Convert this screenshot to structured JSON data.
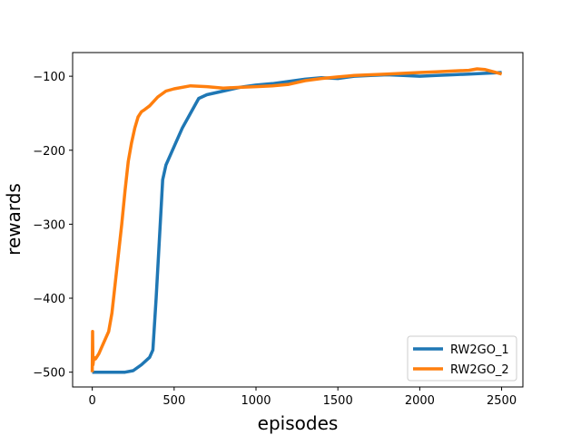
{
  "chart_data": {
    "type": "line",
    "title": "",
    "xlabel": "episodes",
    "ylabel": "rewards",
    "xlim": [
      -120,
      2630
    ],
    "ylim": [
      -520,
      -68
    ],
    "xticks": [
      0,
      500,
      1000,
      1500,
      2000,
      2500
    ],
    "yticks": [
      -500,
      -400,
      -300,
      -200,
      -100
    ],
    "xtick_labels": [
      "0",
      "500",
      "1000",
      "1500",
      "2000",
      "2500"
    ],
    "ytick_labels": [
      "−500",
      "−400",
      "−300",
      "−200",
      "−100"
    ],
    "grid": false,
    "legend": "lower-right",
    "series": [
      {
        "name": "RW2GO_1",
        "color": "#1f77b4",
        "x": [
          0,
          100,
          200,
          250,
          300,
          350,
          370,
          390,
          410,
          430,
          450,
          470,
          500,
          550,
          600,
          650,
          700,
          800,
          900,
          1000,
          1100,
          1200,
          1300,
          1400,
          1500,
          1600,
          1700,
          1800,
          1900,
          2000,
          2100,
          2200,
          2300,
          2400,
          2500
        ],
        "y": [
          -500,
          -500,
          -500,
          -498,
          -490,
          -480,
          -470,
          -400,
          -320,
          -240,
          -220,
          -210,
          -195,
          -170,
          -150,
          -130,
          -125,
          -120,
          -115,
          -112,
          -110,
          -107,
          -104,
          -102,
          -103,
          -100,
          -99,
          -98,
          -99,
          -100,
          -99,
          -98,
          -97,
          -96,
          -95
        ]
      },
      {
        "name": "RW2GO_2",
        "color": "#ff7f0e",
        "x": [
          0,
          2,
          4,
          10,
          20,
          40,
          60,
          80,
          100,
          120,
          140,
          160,
          180,
          200,
          220,
          240,
          260,
          280,
          300,
          320,
          350,
          400,
          450,
          500,
          600,
          700,
          800,
          900,
          1000,
          1100,
          1200,
          1300,
          1400,
          1500,
          1600,
          1700,
          1800,
          1900,
          2000,
          2100,
          2200,
          2300,
          2350,
          2400,
          2450,
          2500
        ],
        "y": [
          -500,
          -445,
          -490,
          -480,
          -482,
          -475,
          -465,
          -455,
          -445,
          -420,
          -380,
          -340,
          -300,
          -255,
          -215,
          -190,
          -170,
          -155,
          -148,
          -145,
          -140,
          -128,
          -120,
          -117,
          -113,
          -114,
          -116,
          -115,
          -114,
          -113,
          -111,
          -106,
          -103,
          -101,
          -99,
          -98,
          -97,
          -96,
          -95,
          -94,
          -93,
          -92,
          -90,
          -91,
          -94,
          -97
        ]
      }
    ]
  }
}
